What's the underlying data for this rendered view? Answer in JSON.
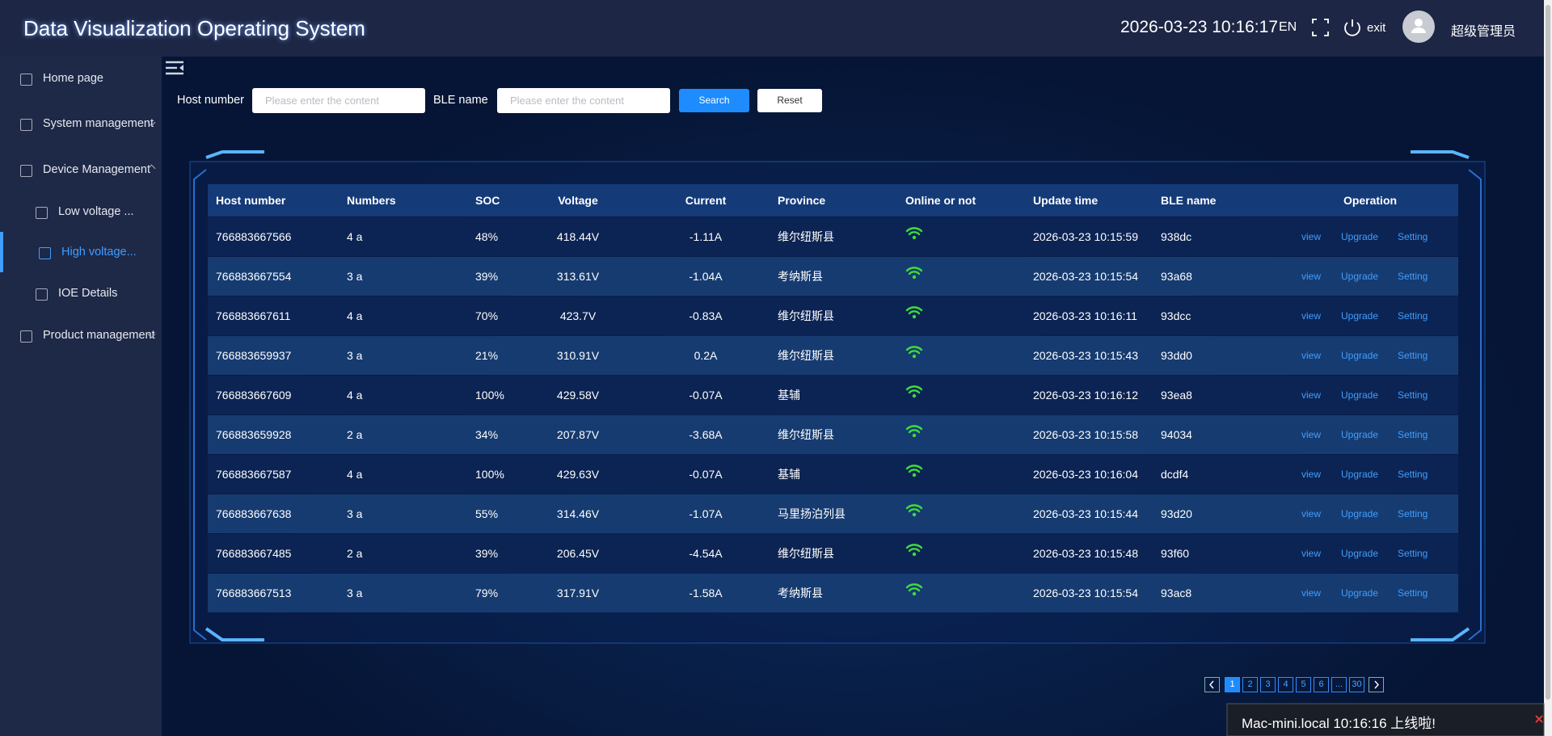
{
  "header": {
    "title": "Data Visualization Operating System",
    "datetime": "2026-03-23 10:16:17",
    "lang": "EN",
    "exit": "exit",
    "user": "超级管理员"
  },
  "sidebar": {
    "items": [
      {
        "label": "Home page",
        "level": 1
      },
      {
        "label": "System management",
        "level": 1
      },
      {
        "label": "Device Management",
        "level": 1
      },
      {
        "label": "Low voltage ...",
        "level": 2
      },
      {
        "label": "High voltage...",
        "level": 2,
        "active": true
      },
      {
        "label": "IOE Details",
        "level": 2
      },
      {
        "label": "Product management",
        "level": 1
      }
    ]
  },
  "search": {
    "host_label": "Host number",
    "host_placeholder": "Please enter the content",
    "ble_label": "BLE name",
    "ble_placeholder": "Please enter the content",
    "search_button": "Search",
    "reset_button": "Reset"
  },
  "table": {
    "columns": [
      "Host number",
      "Numbers",
      "SOC",
      "Voltage",
      "Current",
      "Province",
      "Online or not",
      "Update time",
      "BLE name",
      "Operation"
    ],
    "operations": [
      "view",
      "Upgrade",
      "Setting"
    ],
    "rows": [
      [
        "766883667566",
        "4 a",
        "48%",
        "418.44V",
        "-1.11A",
        "维尔纽斯县",
        "2026-03-23 10:15:59",
        "938dc"
      ],
      [
        "766883667554",
        "3 a",
        "39%",
        "313.61V",
        "-1.04A",
        "考纳斯县",
        "2026-03-23 10:15:54",
        "93a68"
      ],
      [
        "766883667611",
        "4 a",
        "70%",
        "423.7V",
        "-0.83A",
        "维尔纽斯县",
        "2026-03-23 10:16:11",
        "93dcc"
      ],
      [
        "766883659937",
        "3 a",
        "21%",
        "310.91V",
        "0.2A",
        "维尔纽斯县",
        "2026-03-23 10:15:43",
        "93dd0"
      ],
      [
        "766883667609",
        "4 a",
        "100%",
        "429.58V",
        "-0.07A",
        "基辅",
        "2026-03-23 10:16:12",
        "93ea8"
      ],
      [
        "766883659928",
        "2 a",
        "34%",
        "207.87V",
        "-3.68A",
        "维尔纽斯县",
        "2026-03-23 10:15:58",
        "94034"
      ],
      [
        "766883667587",
        "4 a",
        "100%",
        "429.63V",
        "-0.07A",
        "基辅",
        "2026-03-23 10:16:04",
        "dcdf4"
      ],
      [
        "766883667638",
        "3 a",
        "55%",
        "314.46V",
        "-1.07A",
        "马里扬泊列县",
        "2026-03-23 10:15:44",
        "93d20"
      ],
      [
        "766883667485",
        "2 a",
        "39%",
        "206.45V",
        "-4.54A",
        "维尔纽斯县",
        "2026-03-23 10:15:48",
        "93f60"
      ],
      [
        "766883667513",
        "3 a",
        "79%",
        "317.91V",
        "-1.58A",
        "考纳斯县",
        "2026-03-23 10:15:54",
        "93ac8"
      ]
    ]
  },
  "pagination": {
    "pages": [
      "1",
      "2",
      "3",
      "4",
      "5",
      "6",
      "...",
      "30"
    ],
    "current": 0
  },
  "notification": {
    "text": "Mac-mini.local  10:16:16 上线啦!"
  }
}
